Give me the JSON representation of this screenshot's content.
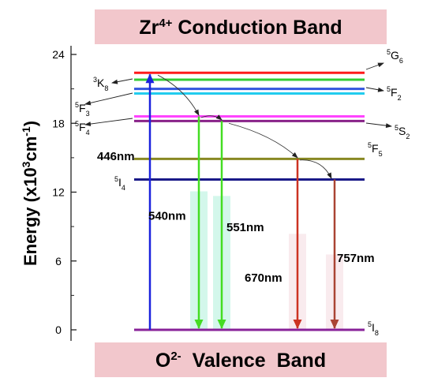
{
  "bands": {
    "conduction": {
      "prefix": "Zr",
      "superscript": "4+",
      "suffix": " Conduction Band",
      "color": "#f2c7cc"
    },
    "valence": {
      "prefix": "O",
      "superscript": "2-",
      "suffix": "  Valence  Band",
      "color": "#f2c7cc"
    }
  },
  "axis": {
    "label_main": "Energy (x10",
    "label_sup": "3",
    "label_mid": "cm",
    "label_sup2": "-1",
    "label_end": ")",
    "min": 0,
    "max": 24,
    "ticks": [
      "0",
      "6",
      "12",
      "18",
      "24"
    ]
  },
  "levels": [
    {
      "id": "5G6",
      "energy": 22.4,
      "color": "#ff1a1a",
      "pre_sup": "5",
      "base": "G",
      "sub": "6",
      "side": "right"
    },
    {
      "id": "3K8",
      "energy": 21.8,
      "color": "#33cc33",
      "pre_sup": "3",
      "base": "K",
      "sub": "8",
      "side": "left"
    },
    {
      "id": "5F2",
      "energy": 21.0,
      "color": "#3355dd",
      "pre_sup": "5",
      "base": "F",
      "sub": "2",
      "side": "right"
    },
    {
      "id": "5F3",
      "energy": 20.6,
      "color": "#22ccee",
      "pre_sup": "5",
      "base": "F",
      "sub": "3",
      "side": "left"
    },
    {
      "id": "5F4",
      "energy": 18.6,
      "color": "#ff44ff",
      "pre_sup": "5",
      "base": "F",
      "sub": "4",
      "side": "left"
    },
    {
      "id": "5S2",
      "energy": 18.2,
      "color": "#882288",
      "pre_sup": "5",
      "base": "S",
      "sub": "2",
      "side": "right"
    },
    {
      "id": "5F5",
      "energy": 14.9,
      "color": "#888822",
      "pre_sup": "5",
      "base": "F",
      "sub": "5",
      "side": "right"
    },
    {
      "id": "5I4",
      "energy": 13.1,
      "color": "#1a1a88",
      "pre_sup": "5",
      "base": "I",
      "sub": "4",
      "side": "left"
    },
    {
      "id": "5I8",
      "energy": 0.0,
      "color": "#882299",
      "pre_sup": "5",
      "base": "I",
      "sub": "8",
      "side": "right"
    }
  ],
  "transitions": [
    {
      "label": "446nm",
      "type": "absorption",
      "color": "#1a22dd",
      "from": 0.0,
      "to": 22.4
    },
    {
      "label": "540nm",
      "type": "emission",
      "color": "#44dd22",
      "from": 18.6,
      "to": 0.0,
      "glow": "#c8f5e6"
    },
    {
      "label": "551nm",
      "type": "emission",
      "color": "#44dd22",
      "from": 18.2,
      "to": 0.0,
      "glow": "#c8f5e6"
    },
    {
      "label": "670nm",
      "type": "emission",
      "color": "#cc3322",
      "from": 14.9,
      "to": 0.0,
      "glow": "#f7e6ea"
    },
    {
      "label": "757nm",
      "type": "emission",
      "color": "#aa4433",
      "from": 13.1,
      "to": 0.0,
      "glow": "#f7e6ea"
    }
  ]
}
